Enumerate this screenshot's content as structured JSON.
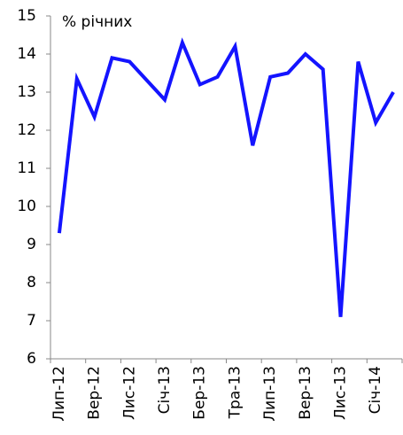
{
  "chart_data": {
    "type": "line",
    "title": "% річних",
    "categories": [
      "Лип-12",
      null,
      "Вер-12",
      null,
      "Лис-12",
      null,
      "Січ-13",
      null,
      "Бер-13",
      null,
      "Тра-13",
      null,
      "Лип-13",
      null,
      "Вер-13",
      null,
      "Лис-13",
      null,
      "Січ-14",
      null
    ],
    "values": [
      9.3,
      13.35,
      12.35,
      13.9,
      13.8,
      13.3,
      12.8,
      14.3,
      13.2,
      13.4,
      14.2,
      11.6,
      13.4,
      13.5,
      14.0,
      13.6,
      7.1,
      13.8,
      12.2,
      13.0
    ],
    "color": "#1414ff",
    "ylim": [
      6,
      15
    ],
    "yticks": [
      6,
      7,
      8,
      9,
      10,
      11,
      12,
      13,
      14,
      15
    ],
    "grid": false
  }
}
